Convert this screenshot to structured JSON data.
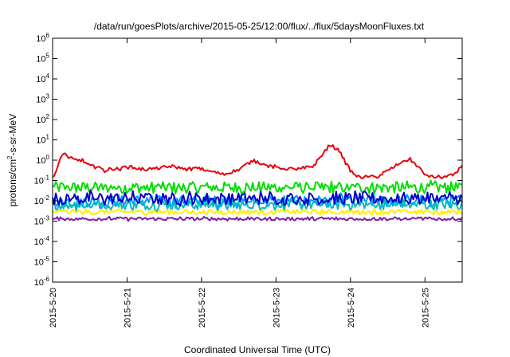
{
  "chart_data": {
    "type": "line",
    "title": "/data/run/goesPlots/archive/2015-05-25/12:00/flux/../flux/5daysMoonFluxes.txt",
    "xlabel": "Coordinated Universal Time (UTC)",
    "ylabel": "protons/cm²-s-sr-MeV",
    "ylabel_parts": [
      "protons/cm",
      "2",
      "-s-sr-MeV"
    ],
    "yscale": "log",
    "ylim": [
      1e-06,
      1000000.0
    ],
    "xlim": [
      0,
      5.5
    ],
    "x_units": "days since 2015-5-20 00:00 UTC",
    "x_ticks": [
      {
        "x": 0,
        "label": "2015-5-20"
      },
      {
        "x": 1,
        "label": "2015-5-21"
      },
      {
        "x": 2,
        "label": "2015-5-22"
      },
      {
        "x": 3,
        "label": "2015-5-23"
      },
      {
        "x": 4,
        "label": "2015-5-24"
      },
      {
        "x": 5,
        "label": "2015-5-25"
      }
    ],
    "y_ticks": [
      {
        "exp": "6"
      },
      {
        "exp": "5"
      },
      {
        "exp": "4"
      },
      {
        "exp": "3"
      },
      {
        "exp": "2"
      },
      {
        "exp": "1"
      },
      {
        "exp": "0"
      },
      {
        "exp": "-1"
      },
      {
        "exp": "-2"
      },
      {
        "exp": "-3"
      },
      {
        "exp": "-4"
      },
      {
        "exp": "-5"
      },
      {
        "exp": "-6"
      }
    ],
    "y_tick_base": "10",
    "grid": false,
    "legend": "none",
    "series": [
      {
        "color": "#e8000b",
        "x": [
          0,
          0.05,
          0.1,
          0.15,
          0.2,
          0.3,
          0.4,
          0.5,
          0.6,
          0.7,
          0.8,
          0.9,
          1.0,
          1.2,
          1.4,
          1.6,
          1.8,
          1.95,
          2.1,
          2.3,
          2.5,
          2.7,
          2.9,
          3.1,
          3.3,
          3.5,
          3.6,
          3.7,
          3.75,
          3.85,
          3.95,
          4.0,
          4.1,
          4.2,
          4.35,
          4.5,
          4.6,
          4.7,
          4.8,
          4.9,
          5.0,
          5.1,
          5.2,
          5.3,
          5.4,
          5.5
        ],
        "y": [
          0.15,
          0.3,
          1.0,
          2.5,
          1.5,
          1.0,
          1.0,
          0.5,
          0.5,
          0.3,
          0.4,
          0.35,
          0.5,
          0.35,
          0.4,
          0.5,
          0.35,
          0.4,
          0.3,
          0.2,
          0.35,
          1.0,
          0.5,
          0.4,
          0.35,
          0.5,
          1.5,
          4.5,
          5.0,
          3.0,
          0.6,
          0.3,
          0.15,
          0.15,
          0.15,
          0.3,
          0.5,
          0.9,
          1.1,
          0.5,
          0.2,
          0.15,
          0.15,
          0.15,
          0.2,
          0.6
        ],
        "noise_decades": 0.08
      },
      {
        "color": "#00dd00",
        "x": [
          0,
          5.5
        ],
        "y": [
          0.045,
          0.045
        ],
        "noise_decades": 0.28
      },
      {
        "color": "#0000cc",
        "x": [
          0,
          5.5
        ],
        "y": [
          0.013,
          0.013
        ],
        "noise_decades": 0.3
      },
      {
        "color": "#0099ff",
        "x": [
          0,
          5.5
        ],
        "y": [
          0.0095,
          0.0095
        ],
        "noise_decades": 0.28
      },
      {
        "color": "#00bbbb",
        "x": [
          0,
          5.5
        ],
        "y": [
          0.0065,
          0.0065
        ],
        "noise_decades": 0.25
      },
      {
        "color": "#ffee00",
        "x": [
          0,
          5.5
        ],
        "y": [
          0.0028,
          0.0028
        ],
        "noise_decades": 0.12
      },
      {
        "color": "#7b1fa2",
        "x": [
          0,
          5.5
        ],
        "y": [
          0.0013,
          0.0013
        ],
        "noise_decades": 0.08
      }
    ]
  }
}
